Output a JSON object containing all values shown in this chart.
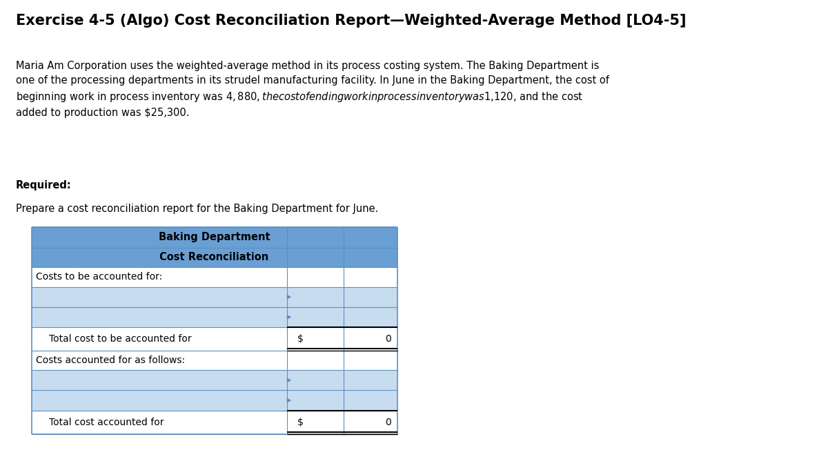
{
  "title": "Exercise 4-5 (Algo) Cost Reconciliation Report—Weighted-Average Method [LO4-5]",
  "paragraph": "Maria Am Corporation uses the weighted-average method in its process costing system. The Baking Department is\none of the processing departments in its strudel manufacturing facility. In June in the Baking Department, the cost of\nbeginning work in process inventory was $4,880, the cost of ending work in process inventory was $1,120, and the cost\nadded to production was $25,300.",
  "required_label": "Required:",
  "required_text": "Prepare a cost reconciliation report for the Baking Department for June.",
  "table_header1": "Baking Department",
  "table_header2": "Cost Reconciliation",
  "row_costs_to": "Costs to be accounted for:",
  "row_total_to": "Total cost to be accounted for",
  "row_costs_acc": "Costs accounted for as follows:",
  "row_total_acc": "Total cost accounted for",
  "header_bg": "#6A9FD4",
  "input_bg": "#C8DCF0",
  "white_bg": "#FFFFFF",
  "border_color": "#5A8FC4",
  "black": "#000000",
  "total_value": "0",
  "dollar_sign": "$",
  "bg_color": "#FFFFFF",
  "font_size_title": 15,
  "font_size_para": 10.5,
  "font_size_table": 10
}
